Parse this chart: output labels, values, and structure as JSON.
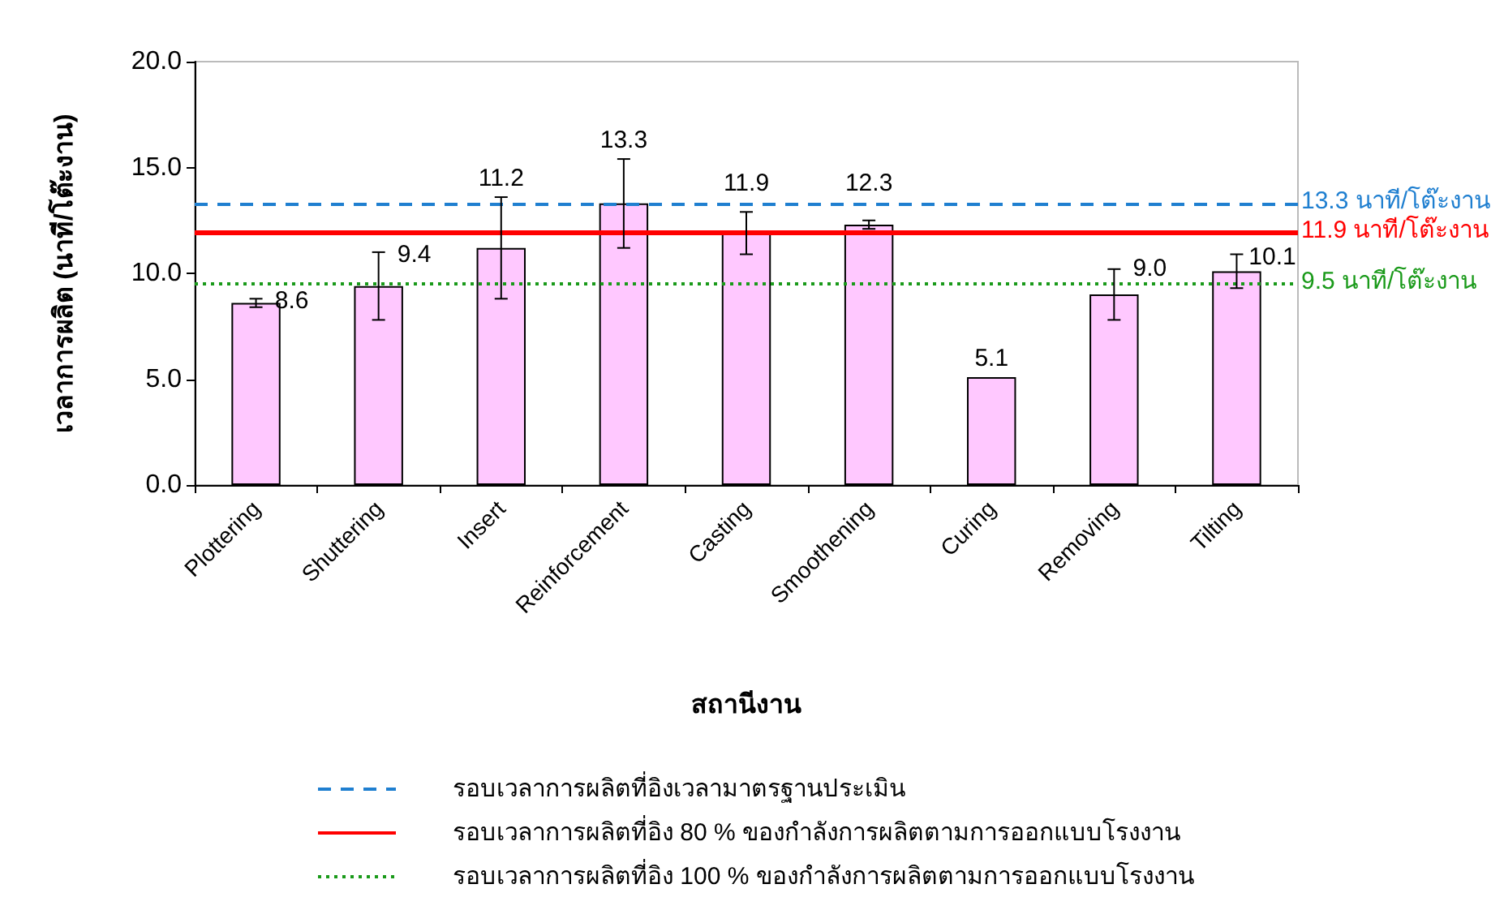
{
  "chart_data": {
    "type": "bar",
    "xlabel": "สถานีงาน",
    "ylabel": "เวลาการผลิต (นาที/โต๊ะงาน)",
    "categories": [
      "Plottering",
      "Shuttering",
      "Insert",
      "Reinforcement",
      "Casting",
      "Smoothening",
      "Curing",
      "Removing",
      "Tilting"
    ],
    "values": [
      8.6,
      9.4,
      11.2,
      13.3,
      11.9,
      12.3,
      5.1,
      9.0,
      10.1
    ],
    "value_labels": [
      "8.6",
      "9.4",
      "11.2",
      "13.3",
      "11.9",
      "12.3",
      "5.1",
      "9.0",
      "10.1"
    ],
    "errors": [
      0.2,
      1.6,
      2.4,
      2.1,
      1.0,
      0.2,
      null,
      1.2,
      0.8
    ],
    "color": "#ffc8ff",
    "ylim": [
      0,
      20
    ],
    "yticks": [
      {
        "value": 0,
        "label": "0.0"
      },
      {
        "value": 5,
        "label": "5.0"
      },
      {
        "value": 10,
        "label": "10.0"
      },
      {
        "value": 15,
        "label": "15.0"
      },
      {
        "value": 20,
        "label": "20.0"
      }
    ],
    "ref_lines": [
      {
        "axis": "y",
        "value": 13.3,
        "label": "รอบเวลาการผลิตที่อิงเวลามาตรฐานประเมิน",
        "color": "#1f7fd0",
        "line_style": "dashed"
      },
      {
        "axis": "y",
        "value": 11.9,
        "label": "รอบเวลาการผลิตที่อิง 80 % ของกำลังการผลิตตามการออกแบบโรงงาน",
        "color": "#ff0000",
        "line_style": "solid"
      },
      {
        "axis": "y",
        "value": 9.5,
        "label": "รอบเวลาการผลิตที่อิง 100 % ของกำลังการผลิตตามการออกแบบโรงงาน",
        "color": "#1a9a1a",
        "line_style": "dotted"
      }
    ],
    "annotations": [
      "13.3 นาที/โต๊ะงาน",
      "11.9 นาที/โต๊ะงาน",
      "9.5 นาที/โต๊ะงาน"
    ],
    "grid": false,
    "legend": "bottom"
  }
}
